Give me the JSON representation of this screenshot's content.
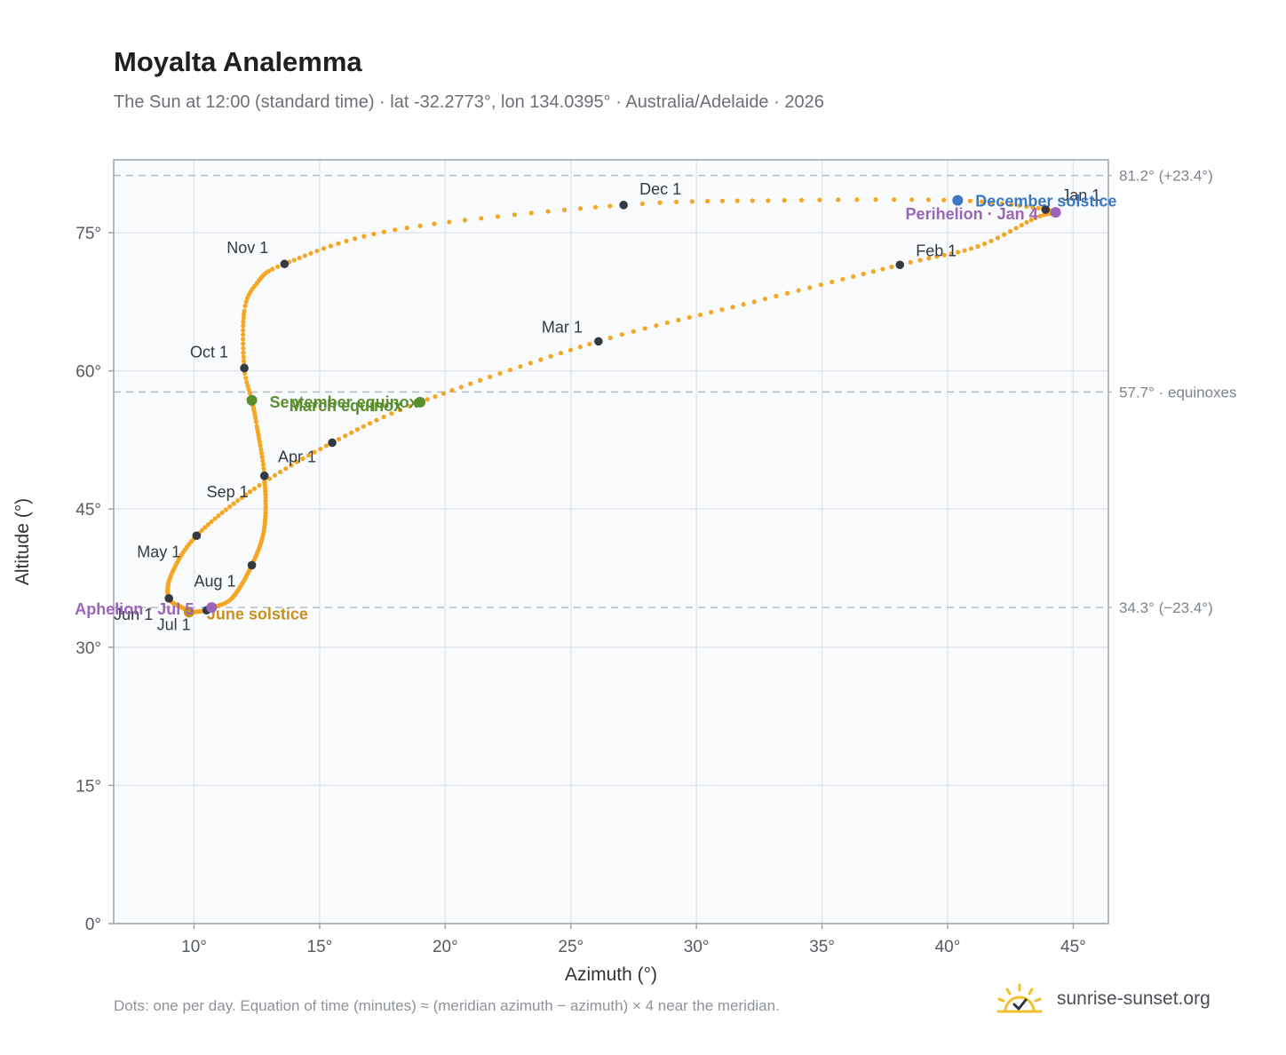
{
  "title": "Moyalta Analemma",
  "subtitle": "The Sun at 12:00 (standard time) · lat -32.2773°, lon 134.0395° · Australia/Adelaide · 2026",
  "footnote": "Dots: one per day. Equation of time (minutes) ≈ (meridian azimuth − azimuth) × 4 near the meridian.",
  "brand": {
    "name": "sunrise-sunset.org",
    "icon": "sun-logo-icon"
  },
  "colors": {
    "path": "#f5a623",
    "month": "#333a44",
    "equinox": "#5a8f2e",
    "december": "#3a78c2",
    "june": "#c8901c",
    "apsis": "#9b64b8",
    "grid": "#e3e7ec",
    "plot_bg": "#f9fbfd",
    "frame": "#9aa3ad",
    "ref": "#b4bcc5"
  },
  "chart_data": {
    "type": "scatter",
    "title": "Moyalta Analemma",
    "xlabel": "Azimuth (°)",
    "ylabel": "Altitude (°)",
    "xlim": [
      6.8,
      46.4
    ],
    "ylim": [
      0,
      82.9
    ],
    "xticks": [
      10,
      15,
      20,
      25,
      30,
      35,
      40,
      45
    ],
    "xtick_labels": [
      "10°",
      "15°",
      "20°",
      "25°",
      "30°",
      "35°",
      "40°",
      "45°"
    ],
    "yticks": [
      0,
      15,
      30,
      45,
      60,
      75
    ],
    "ytick_labels": [
      "0°",
      "15°",
      "30°",
      "45°",
      "60°",
      "75°"
    ],
    "grid": true,
    "reference_lines": [
      {
        "altitude": 81.2,
        "label": "81.2° (+23.4°)"
      },
      {
        "altitude": 57.7,
        "label": "57.7° · equinoxes"
      },
      {
        "altitude": 34.3,
        "label": "34.3° (−23.4°)"
      }
    ],
    "path_keypoints": [
      {
        "day": 1,
        "az": 43.9,
        "alt": 77.5
      },
      {
        "day": 4,
        "az": 44.3,
        "alt": 77.2
      },
      {
        "day": 12,
        "az": 43.5,
        "alt": 76.6
      },
      {
        "day": 22,
        "az": 41.2,
        "alt": 73.5
      },
      {
        "day": 32,
        "az": 38.1,
        "alt": 71.5
      },
      {
        "day": 46,
        "az": 32.3,
        "alt": 67.5
      },
      {
        "day": 60,
        "az": 26.1,
        "alt": 63.2
      },
      {
        "day": 79,
        "az": 19.0,
        "alt": 56.6
      },
      {
        "day": 91,
        "az": 15.5,
        "alt": 52.2
      },
      {
        "day": 105,
        "az": 12.4,
        "alt": 47.2
      },
      {
        "day": 121,
        "az": 10.1,
        "alt": 42.1
      },
      {
        "day": 136,
        "az": 9.1,
        "alt": 37.9
      },
      {
        "day": 152,
        "az": 9.0,
        "alt": 35.3
      },
      {
        "day": 165,
        "az": 9.6,
        "alt": 34.2
      },
      {
        "day": 172,
        "az": 9.8,
        "alt": 33.8
      },
      {
        "day": 182,
        "az": 10.5,
        "alt": 34.0
      },
      {
        "day": 186,
        "az": 10.7,
        "alt": 34.3
      },
      {
        "day": 196,
        "az": 11.5,
        "alt": 35.3
      },
      {
        "day": 213,
        "az": 12.3,
        "alt": 38.9
      },
      {
        "day": 227,
        "az": 12.8,
        "alt": 43.0
      },
      {
        "day": 244,
        "az": 12.8,
        "alt": 48.6
      },
      {
        "day": 258,
        "az": 12.5,
        "alt": 54.0
      },
      {
        "day": 266,
        "az": 12.3,
        "alt": 56.8
      },
      {
        "day": 274,
        "az": 12.0,
        "alt": 60.3
      },
      {
        "day": 288,
        "az": 12.0,
        "alt": 66.5
      },
      {
        "day": 296,
        "az": 12.5,
        "alt": 69.5
      },
      {
        "day": 305,
        "az": 13.6,
        "alt": 71.6
      },
      {
        "day": 320,
        "az": 18.0,
        "alt": 75.3
      },
      {
        "day": 335,
        "az": 27.1,
        "alt": 78.0
      },
      {
        "day": 345,
        "az": 33.5,
        "alt": 78.5
      },
      {
        "day": 355,
        "az": 40.4,
        "alt": 78.5
      },
      {
        "day": 365,
        "az": 43.8,
        "alt": 77.6
      }
    ],
    "month_markers": [
      {
        "label": "Jan 1",
        "az": 43.9,
        "alt": 77.5,
        "dx": 18,
        "dy": -10,
        "anchor": "start"
      },
      {
        "label": "Feb 1",
        "az": 38.1,
        "alt": 71.5,
        "dx": 18,
        "dy": -10,
        "anchor": "start"
      },
      {
        "label": "Mar 1",
        "az": 26.1,
        "alt": 63.2,
        "dx": -18,
        "dy": -10,
        "anchor": "end"
      },
      {
        "label": "Apr 1",
        "az": 15.5,
        "alt": 52.2,
        "dx": -18,
        "dy": 22,
        "anchor": "end"
      },
      {
        "label": "May 1",
        "az": 10.1,
        "alt": 42.1,
        "dx": -18,
        "dy": 24,
        "anchor": "end"
      },
      {
        "label": "Jun 1",
        "az": 9.0,
        "alt": 35.3,
        "dx": -18,
        "dy": 24,
        "anchor": "end"
      },
      {
        "label": "Jul 1",
        "az": 10.5,
        "alt": 34.0,
        "dx": -18,
        "dy": 22,
        "anchor": "end"
      },
      {
        "label": "Aug 1",
        "az": 12.3,
        "alt": 38.9,
        "dx": -18,
        "dy": 24,
        "anchor": "end"
      },
      {
        "label": "Sep 1",
        "az": 12.8,
        "alt": 48.6,
        "dx": -18,
        "dy": 24,
        "anchor": "end"
      },
      {
        "label": "Oct 1",
        "az": 12.0,
        "alt": 60.3,
        "dx": -18,
        "dy": -12,
        "anchor": "end"
      },
      {
        "label": "Nov 1",
        "az": 13.6,
        "alt": 71.6,
        "dx": -18,
        "dy": -12,
        "anchor": "end"
      },
      {
        "label": "Dec 1",
        "az": 27.1,
        "alt": 78.0,
        "dx": 18,
        "dy": -12,
        "anchor": "start"
      }
    ],
    "events": [
      {
        "label": "December solstice",
        "az": 40.4,
        "alt": 78.5,
        "color": "#3a78c2",
        "dx": 20,
        "dy": 7,
        "anchor": "start"
      },
      {
        "label": "Perihelion · Jan 4",
        "az": 44.3,
        "alt": 77.2,
        "color": "#9b64b8",
        "dx": -20,
        "dy": 8,
        "anchor": "end"
      },
      {
        "label": "March equinox",
        "az": 19.0,
        "alt": 56.6,
        "color": "#5a8f2e",
        "dx": -20,
        "dy": 10,
        "anchor": "end"
      },
      {
        "label": "September equinox",
        "az": 12.3,
        "alt": 56.8,
        "color": "#5a8f2e",
        "dx": 20,
        "dy": 8,
        "anchor": "start"
      },
      {
        "label": "June solstice",
        "az": 9.8,
        "alt": 33.8,
        "color": "#c8901c",
        "dx": 20,
        "dy": 8,
        "anchor": "start"
      },
      {
        "label": "Aphelion · Jul 5",
        "az": 10.7,
        "alt": 34.3,
        "color": "#9b64b8",
        "dx": -20,
        "dy": 8,
        "anchor": "end"
      }
    ]
  }
}
